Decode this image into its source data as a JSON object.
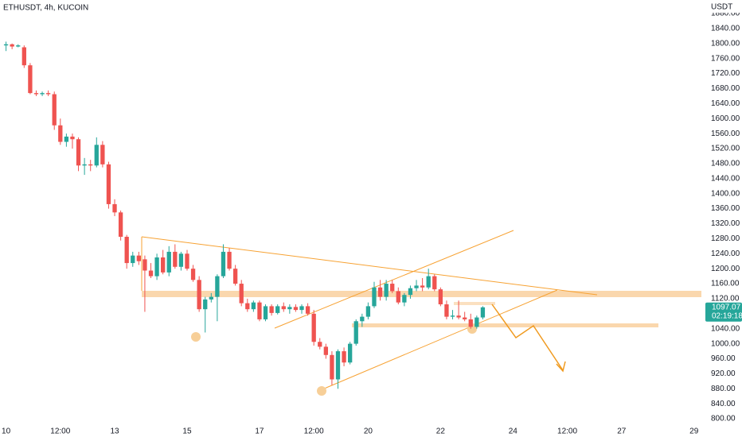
{
  "chart_data": {
    "type": "candlestick",
    "title": "ETHUSDT, 4h, KUCOIN",
    "y_axis_label": "USDT",
    "countdown": "02:19:18",
    "up_color": "#26a69a",
    "down_color": "#ef5350",
    "x": [
      0,
      4,
      8,
      12,
      16,
      20,
      24,
      28,
      32,
      36,
      40,
      44,
      48,
      52,
      56,
      60,
      64,
      68,
      72,
      76,
      80,
      84,
      88,
      92,
      96,
      100,
      104,
      108,
      112,
      116,
      120,
      124,
      128,
      132,
      136,
      140,
      144,
      148,
      152,
      156,
      160,
      164,
      168,
      172,
      176,
      180,
      184,
      188,
      192,
      196,
      200,
      204,
      208,
      212,
      216,
      220,
      224,
      228,
      232,
      236,
      240,
      244,
      248,
      252,
      256,
      260,
      264,
      268,
      272,
      276,
      280,
      284,
      288,
      292,
      296,
      300,
      304,
      308,
      312,
      316
    ],
    "open": [
      1795,
      1798,
      1792,
      1790,
      1742,
      1668,
      1665,
      1668,
      1665,
      1582,
      1538,
      1552,
      1545,
      1475,
      1478,
      1475,
      1530,
      1478,
      1372,
      1350,
      1285,
      1215,
      1235,
      1225,
      1195,
      1180,
      1230,
      1190,
      1245,
      1205,
      1240,
      1200,
      1170,
      1092,
      1118,
      1125,
      1180,
      1245,
      1200,
      1160,
      1108,
      1092,
      1110,
      1065,
      1100,
      1082,
      1100,
      1092,
      1098,
      1090,
      1100,
      1080,
      1005,
      992,
      970,
      905,
      980,
      950,
      1000,
      1060,
      1072,
      1100,
      1150,
      1125,
      1160,
      1140,
      1110,
      1130,
      1148,
      1155,
      1150,
      1180,
      1145,
      1105,
      1072,
      1075,
      1070,
      1065,
      1045,
      1070
    ],
    "high": [
      1805,
      1800,
      1798,
      1795,
      1748,
      1675,
      1672,
      1675,
      1672,
      1600,
      1560,
      1560,
      1550,
      1495,
      1490,
      1550,
      1540,
      1485,
      1385,
      1355,
      1290,
      1245,
      1245,
      1235,
      1215,
      1240,
      1250,
      1260,
      1265,
      1245,
      1250,
      1210,
      1180,
      1125,
      1135,
      1185,
      1265,
      1255,
      1210,
      1170,
      1120,
      1115,
      1115,
      1105,
      1105,
      1105,
      1110,
      1105,
      1105,
      1105,
      1108,
      1090,
      1015,
      1000,
      980,
      985,
      990,
      1005,
      1065,
      1080,
      1110,
      1165,
      1170,
      1170,
      1170,
      1150,
      1135,
      1155,
      1170,
      1175,
      1200,
      1185,
      1150,
      1115,
      1090,
      1115,
      1085,
      1080,
      1075,
      1100
    ],
    "low": [
      1780,
      1785,
      1790,
      1735,
      1665,
      1660,
      1660,
      1660,
      1570,
      1530,
      1525,
      1520,
      1460,
      1450,
      1460,
      1470,
      1470,
      1360,
      1340,
      1275,
      1200,
      1205,
      1210,
      1085,
      1175,
      1170,
      1185,
      1180,
      1200,
      1195,
      1195,
      1165,
      1085,
      1030,
      1110,
      1060,
      1175,
      1195,
      1155,
      1100,
      1085,
      1085,
      1060,
      1060,
      1075,
      1078,
      1085,
      1080,
      1085,
      1080,
      1075,
      995,
      985,
      960,
      890,
      880,
      940,
      945,
      995,
      1045,
      1065,
      1095,
      1115,
      1115,
      1135,
      1105,
      1100,
      1120,
      1140,
      1140,
      1145,
      1140,
      1100,
      1065,
      1065,
      1065,
      1060,
      1040,
      1040,
      1065
    ],
    "close": [
      1798,
      1792,
      1795,
      1742,
      1668,
      1665,
      1668,
      1665,
      1582,
      1538,
      1552,
      1545,
      1475,
      1478,
      1475,
      1530,
      1478,
      1372,
      1350,
      1285,
      1215,
      1235,
      1220,
      1195,
      1180,
      1230,
      1190,
      1245,
      1205,
      1240,
      1200,
      1170,
      1092,
      1118,
      1125,
      1180,
      1245,
      1200,
      1160,
      1108,
      1092,
      1110,
      1065,
      1100,
      1082,
      1100,
      1092,
      1098,
      1090,
      1100,
      1080,
      1005,
      992,
      970,
      905,
      980,
      950,
      1000,
      1060,
      1072,
      1100,
      1150,
      1125,
      1160,
      1140,
      1110,
      1130,
      1148,
      1155,
      1150,
      1180,
      1145,
      1105,
      1072,
      1075,
      1070,
      1065,
      1045,
      1070,
      1097.07
    ],
    "xlim": [
      -4,
      463
    ],
    "ylim": [
      779,
      1916
    ],
    "xticks": [
      {
        "value": 0,
        "label": "10"
      },
      {
        "value": 36,
        "label": "12:00"
      },
      {
        "value": 72,
        "label": "13"
      },
      {
        "value": 120,
        "label": "15"
      },
      {
        "value": 168,
        "label": "17"
      },
      {
        "value": 204,
        "label": "12:00"
      },
      {
        "value": 240,
        "label": "20"
      },
      {
        "value": 288,
        "label": "22"
      },
      {
        "value": 336,
        "label": "24"
      },
      {
        "value": 372,
        "label": "12:00"
      },
      {
        "value": 408,
        "label": "27"
      },
      {
        "value": 456,
        "label": "29"
      }
    ],
    "yticks": [
      {
        "value": 800,
        "label": "800.00"
      },
      {
        "value": 840,
        "label": "840.00"
      },
      {
        "value": 880,
        "label": "880.00"
      },
      {
        "value": 920,
        "label": "920.00"
      },
      {
        "value": 960,
        "label": "960.00"
      },
      {
        "value": 1000,
        "label": "1000.00"
      },
      {
        "value": 1040,
        "label": "1040.00"
      },
      {
        "value": 1080,
        "label": "1080.00"
      },
      {
        "value": 1120,
        "label": "1120.00"
      },
      {
        "value": 1160,
        "label": "1160.00"
      },
      {
        "value": 1200,
        "label": "1200.00"
      },
      {
        "value": 1240,
        "label": "1240.00"
      },
      {
        "value": 1280,
        "label": "1280.00"
      },
      {
        "value": 1320,
        "label": "1320.00"
      },
      {
        "value": 1360,
        "label": "1360.00"
      },
      {
        "value": 1400,
        "label": "1400.00"
      },
      {
        "value": 1440,
        "label": "1440.00"
      },
      {
        "value": 1480,
        "label": "1480.00"
      },
      {
        "value": 1520,
        "label": "1520.00"
      },
      {
        "value": 1560,
        "label": "1560.00"
      },
      {
        "value": 1600,
        "label": "1600.00"
      },
      {
        "value": 1640,
        "label": "1640.00"
      },
      {
        "value": 1680,
        "label": "1680.00"
      },
      {
        "value": 1720,
        "label": "1720.00"
      },
      {
        "value": 1760,
        "label": "1760.00"
      },
      {
        "value": 1800,
        "label": "1800.00"
      },
      {
        "value": 1840,
        "label": "1840.00"
      },
      {
        "value": 1880,
        "label": "1880.00"
      }
    ]
  }
}
